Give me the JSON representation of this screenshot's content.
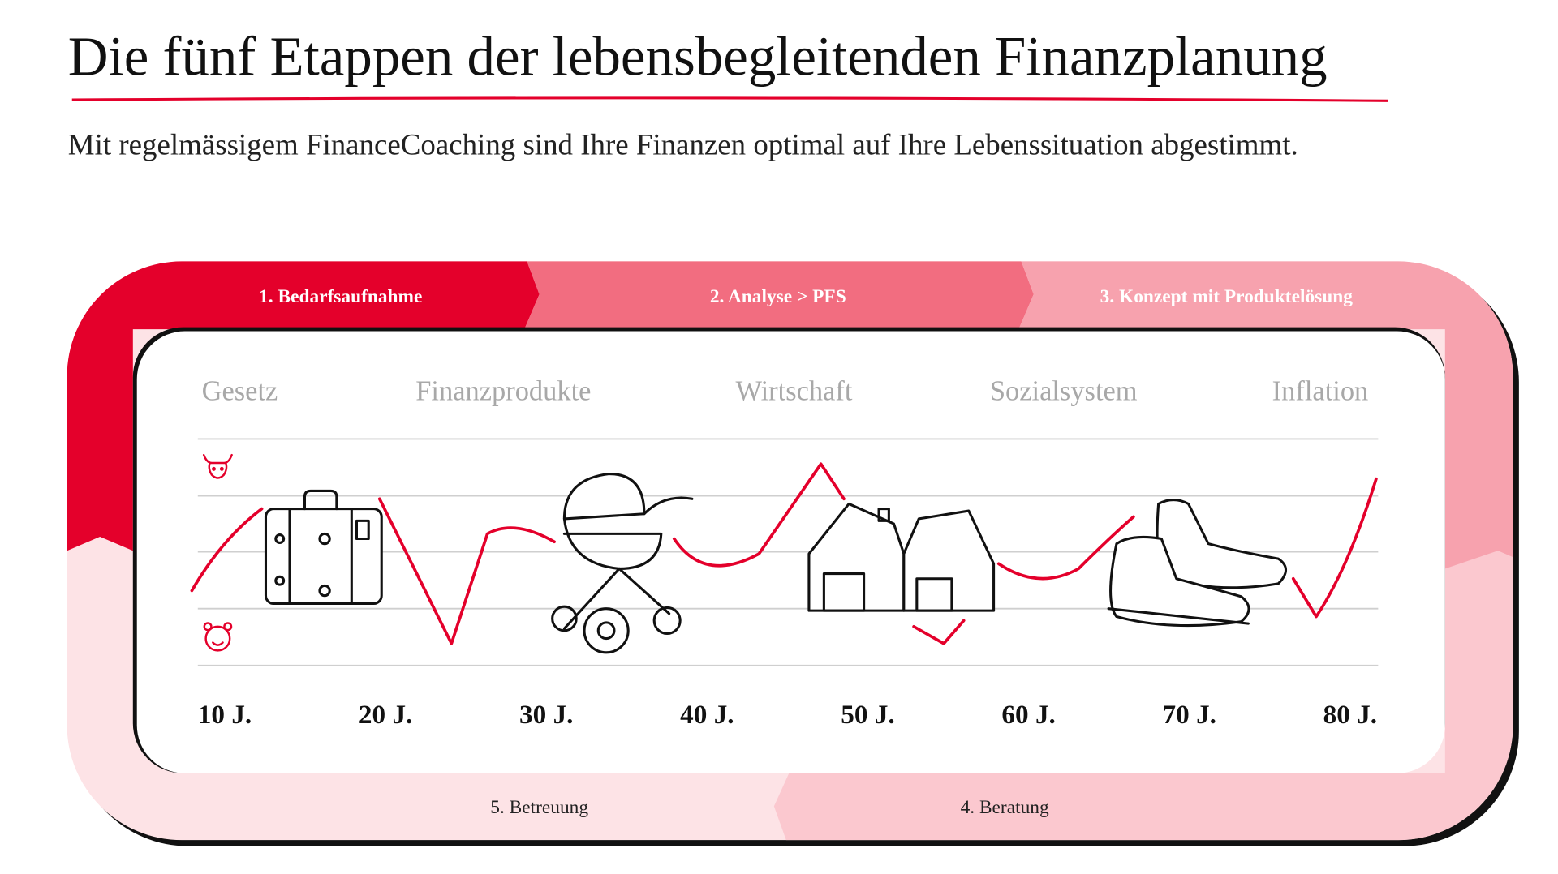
{
  "header": {
    "title": "Die fünf Etappen der lebensbegleitenden Finanzplanung",
    "subtitle": "Mit regelmässigem FinanceCoaching sind Ihre Finanzen optimal auf Ihre Lebenssituation abgestimmt."
  },
  "stages": [
    "1. Bedarfsaufnahme",
    "2. Analyse > PFS",
    "3. Konzept mit Produktelösung",
    "4. Beratung",
    "5. Betreuung"
  ],
  "factors": [
    "Gesetz",
    "Finanzprodukte",
    "Wirtschaft",
    "Sozialsystem",
    "Inflation"
  ],
  "ages": [
    "10 J.",
    "20 J.",
    "30 J.",
    "40 J.",
    "50 J.",
    "60 J.",
    "70 J.",
    "80 J."
  ]
}
